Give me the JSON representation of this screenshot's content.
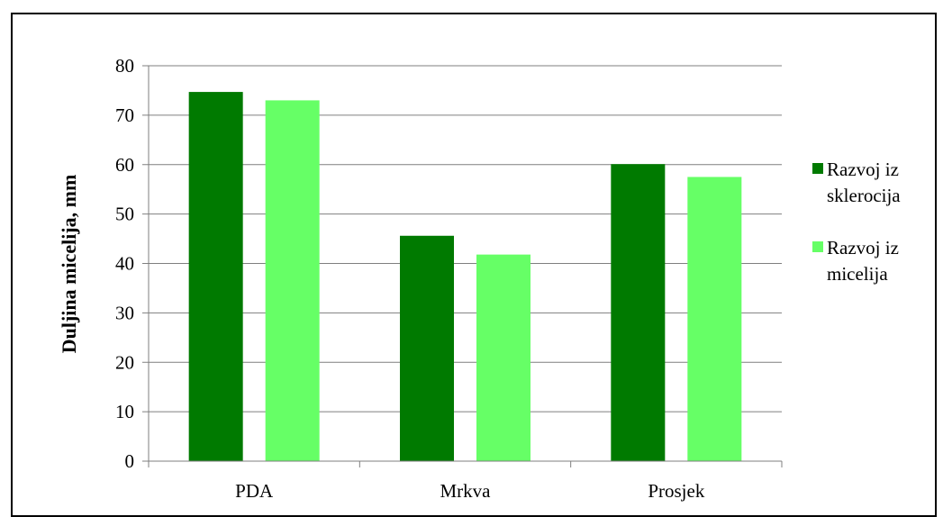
{
  "chart_data": {
    "type": "bar",
    "title": "",
    "xlabel": "",
    "ylabel": "Duljina micelija, mm",
    "ylim": [
      0,
      80
    ],
    "yticks": [
      0,
      10,
      20,
      30,
      40,
      50,
      60,
      70,
      80
    ],
    "categories": [
      "PDA",
      "Mrkva",
      "Prosjek"
    ],
    "series": [
      {
        "name": "Razvoj iz sklerocija",
        "name_lines": [
          "Razvoj iz",
          "sklerocija"
        ],
        "color": "#007a00",
        "values": [
          74.7,
          45.6,
          60.1
        ]
      },
      {
        "name": "Razvoj iz micelija",
        "name_lines": [
          "Razvoj iz",
          "micelija"
        ],
        "color": "#66ff66",
        "values": [
          73.0,
          41.8,
          57.5
        ]
      }
    ],
    "grid": true,
    "legend_position": "right"
  }
}
